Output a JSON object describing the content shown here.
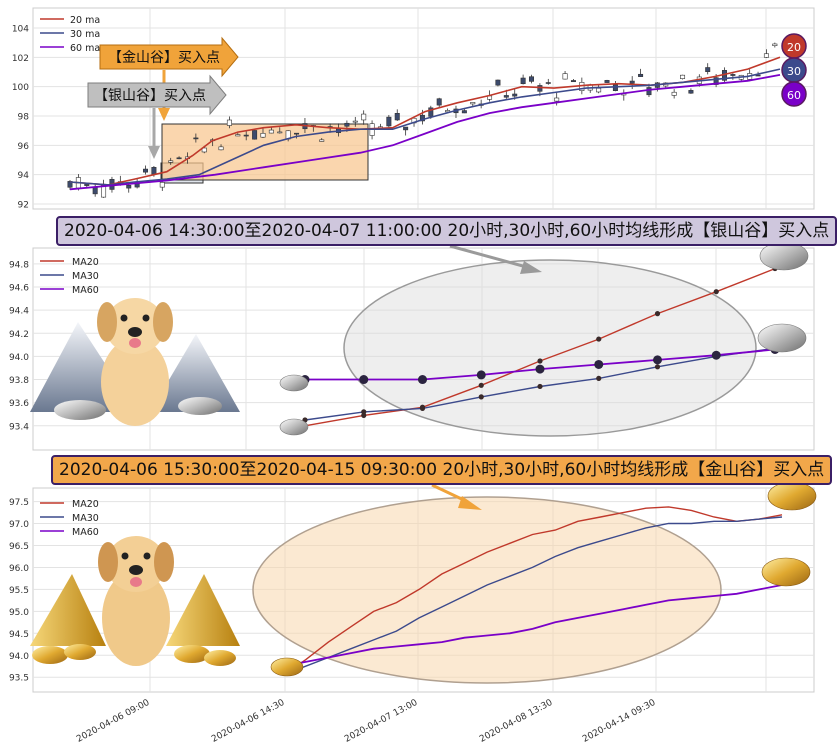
{
  "chart_data": [
    {
      "type": "candlestick",
      "yticks": [
        "104",
        "102",
        "100",
        "98",
        "96",
        "94",
        "92"
      ],
      "ylim": [
        91.8,
        105
      ],
      "legend": [
        {
          "name": "20 ma",
          "color": "#c0392b"
        },
        {
          "name": "30 ma",
          "color": "#3c4a8c"
        },
        {
          "name": "60 ma",
          "color": "#7a00c8"
        }
      ],
      "annotations": {
        "gold": "【金山谷】买入点",
        "silver": "【银山谷】买入点"
      },
      "badges": [
        "20",
        "30",
        "60"
      ],
      "ma_20": [
        [
          0,
          93.5
        ],
        [
          12,
          93.3
        ],
        [
          20,
          93.7
        ],
        [
          30,
          94.2
        ],
        [
          38,
          95.3
        ],
        [
          44,
          96.3
        ],
        [
          52,
          96.9
        ],
        [
          60,
          97.2
        ],
        [
          70,
          97.4
        ],
        [
          80,
          97.2
        ],
        [
          90,
          97.1
        ],
        [
          100,
          97.2
        ],
        [
          110,
          98.3
        ],
        [
          120,
          98.9
        ],
        [
          130,
          99.4
        ],
        [
          140,
          100.0
        ],
        [
          150,
          99.9
        ],
        [
          160,
          100.1
        ],
        [
          170,
          100.2
        ],
        [
          180,
          100.1
        ],
        [
          190,
          100.3
        ],
        [
          200,
          100.7
        ],
        [
          210,
          101.2
        ],
        [
          220,
          102.0
        ]
      ],
      "ma_30": [
        [
          0,
          93.5
        ],
        [
          12,
          93.3
        ],
        [
          20,
          93.5
        ],
        [
          30,
          93.7
        ],
        [
          40,
          94.0
        ],
        [
          50,
          95.0
        ],
        [
          60,
          96.0
        ],
        [
          70,
          96.6
        ],
        [
          80,
          96.9
        ],
        [
          90,
          97.1
        ],
        [
          100,
          97.1
        ],
        [
          110,
          97.8
        ],
        [
          120,
          98.4
        ],
        [
          130,
          98.9
        ],
        [
          140,
          99.3
        ],
        [
          150,
          99.6
        ],
        [
          160,
          99.9
        ],
        [
          170,
          100.0
        ],
        [
          180,
          100.1
        ],
        [
          190,
          100.3
        ],
        [
          200,
          100.5
        ],
        [
          210,
          100.7
        ],
        [
          220,
          101.2
        ]
      ],
      "ma_60": [
        [
          0,
          93.0
        ],
        [
          15,
          93.3
        ],
        [
          30,
          93.6
        ],
        [
          45,
          94.0
        ],
        [
          60,
          94.5
        ],
        [
          75,
          95.0
        ],
        [
          90,
          95.5
        ],
        [
          100,
          96.0
        ],
        [
          110,
          96.8
        ],
        [
          120,
          97.6
        ],
        [
          130,
          98.2
        ],
        [
          140,
          98.6
        ],
        [
          150,
          98.9
        ],
        [
          160,
          99.2
        ],
        [
          170,
          99.5
        ],
        [
          180,
          99.8
        ],
        [
          190,
          100.0
        ],
        [
          200,
          100.2
        ],
        [
          210,
          100.4
        ],
        [
          220,
          100.8
        ]
      ]
    },
    {
      "type": "line",
      "yticks": [
        "94.8",
        "94.6",
        "94.4",
        "94.2",
        "94.0",
        "93.8",
        "93.6",
        "93.4"
      ],
      "ylim": [
        93.32,
        94.86
      ],
      "series": [
        {
          "name": "MA20",
          "color": "#c0392b",
          "values": [
            93.4,
            93.49,
            93.56,
            93.75,
            93.96,
            94.15,
            94.37,
            94.56,
            94.76
          ]
        },
        {
          "name": "MA30",
          "color": "#3c4a8c",
          "values": [
            93.45,
            93.52,
            93.55,
            93.65,
            93.74,
            93.81,
            93.91,
            94.0,
            94.07
          ]
        },
        {
          "name": "MA60",
          "color": "#7a00c8",
          "values": [
            93.8,
            93.8,
            93.8,
            93.84,
            93.89,
            93.93,
            93.97,
            94.01,
            94.06
          ]
        }
      ],
      "title": "2020-04-06 14:30:00至2020-04-07 11:00:00 20小时,30小时,60小时均线形成【银山谷】买入点"
    },
    {
      "type": "line",
      "yticks": [
        "97.5",
        "97.0",
        "96.5",
        "96.0",
        "95.5",
        "95.0",
        "94.5",
        "94.0",
        "93.5"
      ],
      "ylim": [
        93.3,
        97.65
      ],
      "series": [
        {
          "name": "MA20",
          "color": "#c0392b",
          "values": [
            93.55,
            93.9,
            94.3,
            94.65,
            95.0,
            95.2,
            95.5,
            95.85,
            96.1,
            96.35,
            96.55,
            96.75,
            96.85,
            97.05,
            97.15,
            97.25,
            97.35,
            97.38,
            97.3,
            97.15,
            97.05,
            97.1,
            97.2
          ]
        },
        {
          "name": "MA30",
          "color": "#3c4a8c",
          "values": [
            93.55,
            93.75,
            93.95,
            94.15,
            94.35,
            94.55,
            94.85,
            95.1,
            95.35,
            95.6,
            95.8,
            96.0,
            96.25,
            96.45,
            96.6,
            96.75,
            96.9,
            97.0,
            97.0,
            97.05,
            97.05,
            97.1,
            97.15
          ]
        },
        {
          "name": "MA60",
          "color": "#7a00c8",
          "values": [
            93.75,
            93.85,
            93.95,
            94.05,
            94.15,
            94.2,
            94.25,
            94.3,
            94.4,
            94.45,
            94.5,
            94.6,
            94.75,
            94.85,
            94.95,
            95.05,
            95.15,
            95.25,
            95.3,
            95.35,
            95.4,
            95.5,
            95.6
          ]
        }
      ],
      "title": "2020-04-06 15:30:00至2020-04-15 09:30:00 20小时,30小时,60小时均线形成【金山谷】买入点",
      "xticks": [
        "2020-04-06 09:00",
        "2020-04-06 14:30",
        "2020-04-07 13:00",
        "2020-04-08 13:30",
        "2020-04-14 09:30"
      ]
    }
  ]
}
